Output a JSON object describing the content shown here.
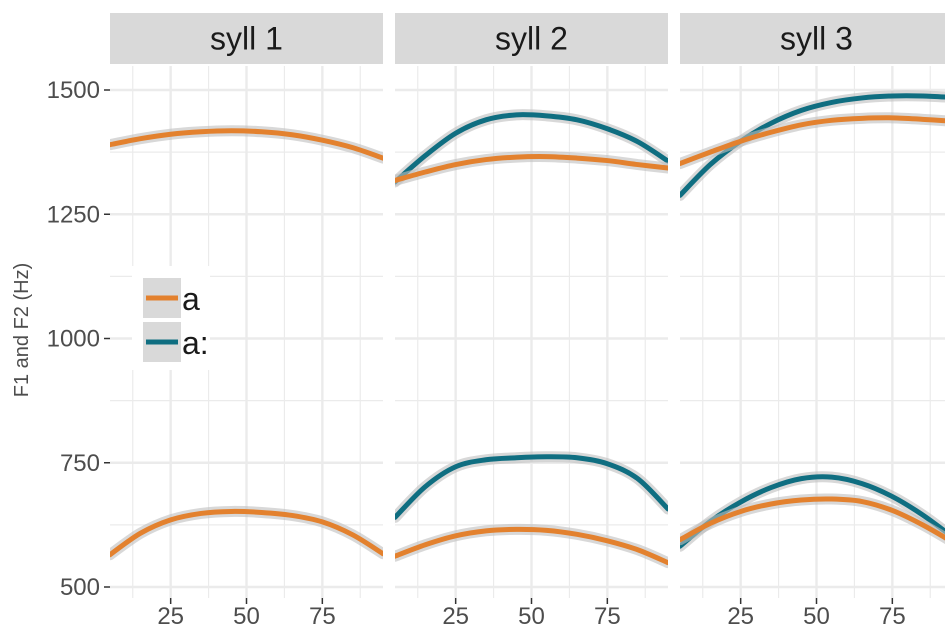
{
  "colors": {
    "a": "#E3812E",
    "a_long": "#0F6E81",
    "panel_bg": "#FFFFFF",
    "grid": "#EBEBEB",
    "strip_bg": "#D9D9D9",
    "ribbon": "#BEBEBE"
  },
  "chart_data": {
    "type": "line",
    "ylabel": "F1 and F2 (Hz)",
    "xlabel": "",
    "xlim": [
      5,
      95
    ],
    "ylim": [
      490,
      1650
    ],
    "x_ticks": [
      25,
      50,
      75
    ],
    "y_ticks": [
      500,
      750,
      1000,
      1250,
      1500
    ],
    "grid": true,
    "legend": {
      "position": "inside-left",
      "entries": [
        "a",
        "a:"
      ]
    },
    "panels": [
      {
        "title": "syll 1",
        "series": [
          {
            "name": "a",
            "key": "a",
            "x": [
              5,
              15,
              25,
              35,
              45,
              55,
              65,
              75,
              85,
              95
            ],
            "y": [
              1390,
              1402,
              1411,
              1416,
              1418,
              1416,
              1410,
              1399,
              1384,
              1363
            ]
          },
          {
            "name": "a",
            "key": "a",
            "x": [
              5,
              15,
              25,
              35,
              45,
              55,
              65,
              75,
              85,
              95
            ],
            "y": [
              565,
              608,
              635,
              648,
              652,
              650,
              644,
              631,
              605,
              567
            ]
          }
        ]
      },
      {
        "title": "syll 2",
        "series": [
          {
            "name": "a:",
            "key": "a_long",
            "x": [
              5,
              15,
              25,
              35,
              45,
              55,
              65,
              75,
              85,
              95
            ],
            "y": [
              1315,
              1368,
              1413,
              1440,
              1450,
              1448,
              1440,
              1422,
              1396,
              1357
            ]
          },
          {
            "name": "a",
            "key": "a",
            "x": [
              5,
              15,
              25,
              35,
              45,
              55,
              65,
              75,
              85,
              95
            ],
            "y": [
              1318,
              1335,
              1350,
              1360,
              1365,
              1366,
              1363,
              1358,
              1350,
              1343
            ]
          },
          {
            "name": "a:",
            "key": "a_long",
            "x": [
              5,
              15,
              25,
              35,
              45,
              55,
              65,
              75,
              85,
              95
            ],
            "y": [
              640,
              702,
              742,
              756,
              760,
              762,
              760,
              748,
              718,
              657
            ]
          },
          {
            "name": "a",
            "key": "a",
            "x": [
              5,
              15,
              25,
              35,
              45,
              55,
              65,
              75,
              85,
              95
            ],
            "y": [
              562,
              585,
              603,
              613,
              616,
              614,
              606,
              593,
              575,
              549
            ]
          }
        ]
      },
      {
        "title": "syll 3",
        "series": [
          {
            "name": "a:",
            "key": "a_long",
            "x": [
              5,
              15,
              25,
              35,
              45,
              55,
              65,
              75,
              85,
              95
            ],
            "y": [
              1288,
              1350,
              1397,
              1433,
              1459,
              1475,
              1484,
              1488,
              1488,
              1485
            ]
          },
          {
            "name": "a",
            "key": "a",
            "x": [
              5,
              15,
              25,
              35,
              45,
              55,
              65,
              75,
              85,
              95
            ],
            "y": [
              1352,
              1375,
              1397,
              1415,
              1430,
              1439,
              1443,
              1444,
              1441,
              1437
            ]
          },
          {
            "name": "a:",
            "key": "a_long",
            "x": [
              5,
              15,
              25,
              35,
              45,
              55,
              65,
              75,
              85,
              95
            ],
            "y": [
              582,
              632,
              671,
              700,
              718,
              721,
              708,
              682,
              645,
              600
            ]
          },
          {
            "name": "a",
            "key": "a",
            "x": [
              5,
              15,
              25,
              35,
              45,
              55,
              65,
              75,
              85,
              95
            ],
            "y": [
              595,
              628,
              652,
              667,
              675,
              677,
              672,
              654,
              625,
              590
            ]
          }
        ]
      }
    ]
  }
}
